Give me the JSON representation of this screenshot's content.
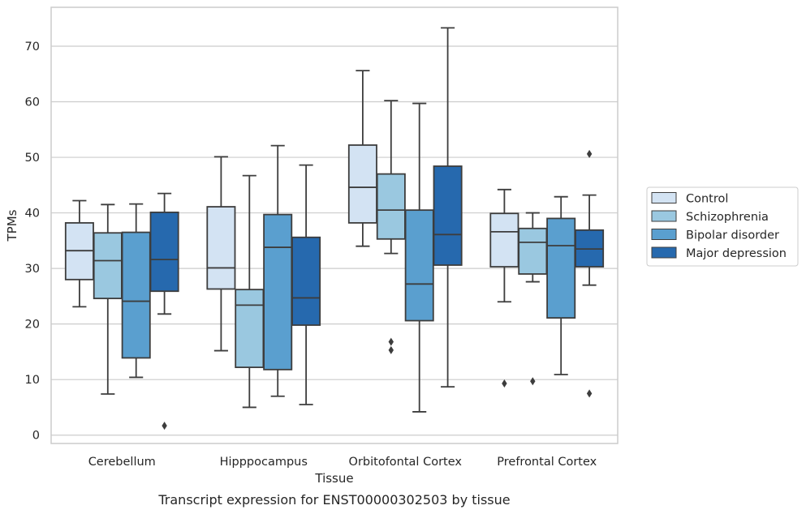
{
  "caption": "Transcript expression for ENST00000302503 by tissue",
  "chart_data": {
    "type": "box",
    "title": "",
    "xlabel": "Tissue",
    "ylabel": "TPMs",
    "ylim": [
      -1.5,
      77
    ],
    "yticks": [
      0,
      10,
      20,
      30,
      40,
      50,
      60,
      70
    ],
    "grid": "horizontal",
    "legend_position": "right",
    "categories": [
      "Cerebellum",
      "Hipppocampus",
      "Orbitofontal Cortex",
      "Prefrontal Cortex"
    ],
    "series": [
      {
        "name": "Control",
        "color": "#d3e3f3",
        "boxes": [
          {
            "whislo": 23.1,
            "q1": 28.0,
            "med": 33.2,
            "q3": 38.2,
            "whishi": 42.2,
            "fliers": []
          },
          {
            "whislo": 15.2,
            "q1": 26.3,
            "med": 30.1,
            "q3": 41.1,
            "whishi": 50.1,
            "fliers": []
          },
          {
            "whislo": 34.0,
            "q1": 38.2,
            "med": 44.6,
            "q3": 52.2,
            "whishi": 65.6,
            "fliers": []
          },
          {
            "whislo": 24.0,
            "q1": 30.3,
            "med": 36.6,
            "q3": 39.9,
            "whishi": 44.2,
            "fliers": [
              9.3
            ]
          }
        ]
      },
      {
        "name": "Schizophrenia",
        "color": "#9ac8e0",
        "boxes": [
          {
            "whislo": 7.4,
            "q1": 24.6,
            "med": 31.4,
            "q3": 36.4,
            "whishi": 41.5,
            "fliers": []
          },
          {
            "whislo": 5.0,
            "q1": 12.2,
            "med": 23.4,
            "q3": 26.2,
            "whishi": 46.7,
            "fliers": []
          },
          {
            "whislo": 32.7,
            "q1": 35.3,
            "med": 40.5,
            "q3": 47.0,
            "whishi": 60.2,
            "fliers": [
              15.3,
              16.8
            ]
          },
          {
            "whislo": 27.6,
            "q1": 29.0,
            "med": 34.7,
            "q3": 37.2,
            "whishi": 40.0,
            "fliers": [
              9.7
            ]
          }
        ]
      },
      {
        "name": "Bipolar disorder",
        "color": "#5a9fcf",
        "boxes": [
          {
            "whislo": 10.4,
            "q1": 13.9,
            "med": 24.1,
            "q3": 36.5,
            "whishi": 41.6,
            "fliers": []
          },
          {
            "whislo": 7.0,
            "q1": 11.8,
            "med": 33.8,
            "q3": 39.7,
            "whishi": 52.1,
            "fliers": []
          },
          {
            "whislo": 4.2,
            "q1": 20.6,
            "med": 27.2,
            "q3": 40.5,
            "whishi": 59.7,
            "fliers": []
          },
          {
            "whislo": 10.9,
            "q1": 21.1,
            "med": 34.1,
            "q3": 39.0,
            "whishi": 42.9,
            "fliers": []
          }
        ]
      },
      {
        "name": "Major depression",
        "color": "#2669ae",
        "boxes": [
          {
            "whislo": 21.8,
            "q1": 25.9,
            "med": 31.6,
            "q3": 40.1,
            "whishi": 43.5,
            "fliers": [
              1.7
            ]
          },
          {
            "whislo": 5.5,
            "q1": 19.8,
            "med": 24.7,
            "q3": 35.6,
            "whishi": 48.6,
            "fliers": []
          },
          {
            "whislo": 8.7,
            "q1": 30.6,
            "med": 36.1,
            "q3": 48.4,
            "whishi": 73.3,
            "fliers": []
          },
          {
            "whislo": 27.0,
            "q1": 30.3,
            "med": 33.5,
            "q3": 36.9,
            "whishi": 43.2,
            "fliers": [
              7.5,
              50.6
            ]
          }
        ]
      }
    ]
  }
}
